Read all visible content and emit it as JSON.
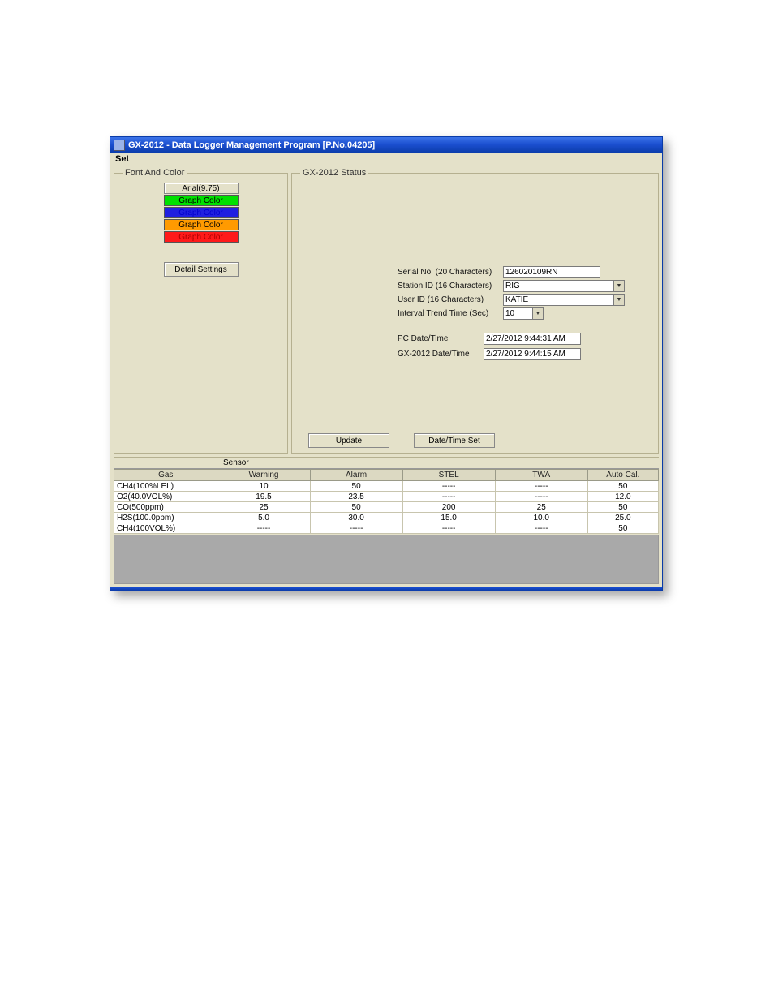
{
  "window": {
    "title": "GX-2012 - Data Logger Management Program [P.No.04205]"
  },
  "menu": {
    "set": "Set"
  },
  "fontColor": {
    "legend": "Font And Color",
    "font_btn": "Arial(9.75)",
    "colors": [
      {
        "label": "Graph Color",
        "bg": "#00e000",
        "fg": "#000000"
      },
      {
        "label": "Graph Color",
        "bg": "#2020e0",
        "fg": "#0000cc"
      },
      {
        "label": "Graph Color",
        "bg": "#ff9a00",
        "fg": "#000000"
      },
      {
        "label": "Graph Color",
        "bg": "#ff1a1a",
        "fg": "#aa0000"
      }
    ],
    "detail_btn": "Detail Settings"
  },
  "status": {
    "legend": "GX-2012 Status",
    "serial_lbl": "Serial No. (20 Characters)",
    "serial_val": "126020109RN",
    "station_lbl": "Station ID (16 Characters)",
    "station_val": "RIG",
    "user_lbl": "User ID (16 Characters)",
    "user_val": "KATIE",
    "interval_lbl": "Interval Trend Time (Sec)",
    "interval_val": "10",
    "pc_dt_lbl": "PC Date/Time",
    "pc_dt_val": "2/27/2012 9:44:31 AM",
    "gx_dt_lbl": "GX-2012 Date/Time",
    "gx_dt_val": "2/27/2012 9:44:15 AM",
    "update_btn": "Update",
    "dtset_btn": "Date/Time Set"
  },
  "sensor": {
    "section": "Sensor",
    "columns": [
      "Gas",
      "Warning",
      "Alarm",
      "STEL",
      "TWA",
      "Auto Cal."
    ],
    "col_widths": [
      "19%",
      "17%",
      "17%",
      "17%",
      "17%",
      "13%"
    ],
    "rows": [
      [
        "CH4(100%LEL)",
        "10",
        "50",
        "-----",
        "-----",
        "50"
      ],
      [
        "O2(40.0VOL%)",
        "19.5",
        "23.5",
        "-----",
        "-----",
        "12.0"
      ],
      [
        "CO(500ppm)",
        "25",
        "50",
        "200",
        "25",
        "50"
      ],
      [
        "H2S(100.0ppm)",
        "5.0",
        "30.0",
        "15.0",
        "10.0",
        "25.0"
      ],
      [
        "CH4(100VOL%)",
        "-----",
        "-----",
        "-----",
        "-----",
        "50"
      ]
    ]
  }
}
